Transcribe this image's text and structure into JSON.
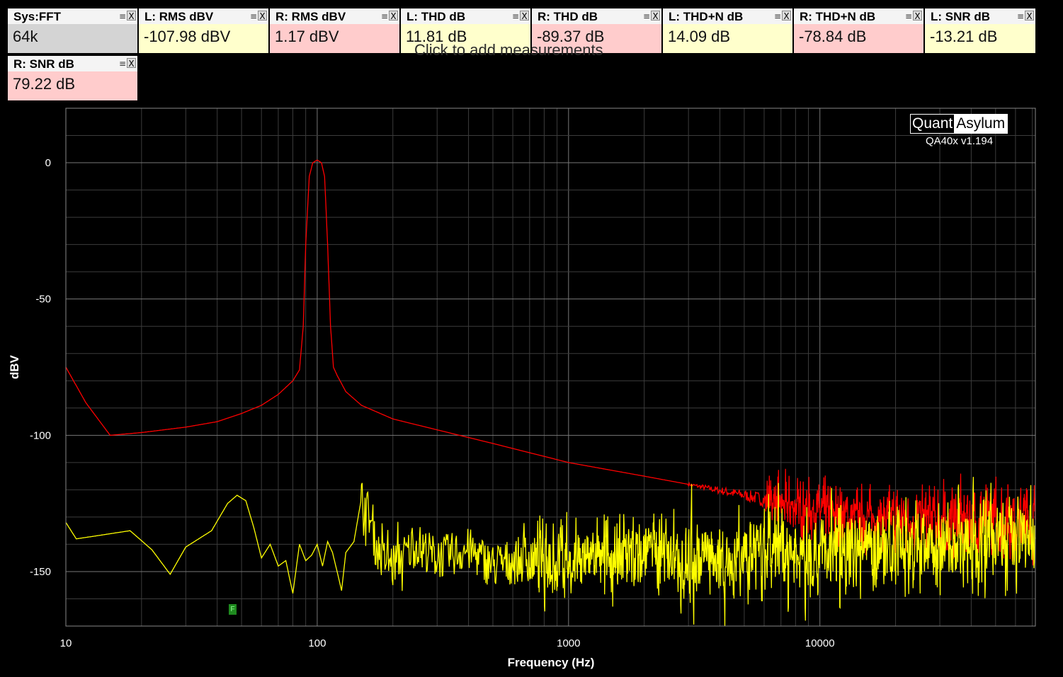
{
  "hint": "Click to add measurements",
  "tiles": [
    {
      "title": "Sys:FFT",
      "value": "64k",
      "bg": "#d4d4d4"
    },
    {
      "title": "L: RMS dBV",
      "value": "-107.98 dBV",
      "bg": "#ffffcc"
    },
    {
      "title": "R: RMS dBV",
      "value": "1.17 dBV",
      "bg": "#ffcccc"
    },
    {
      "title": "L: THD dB",
      "value": "11.81 dB",
      "bg": "#ffffcc"
    },
    {
      "title": "R: THD dB",
      "value": "-89.37 dB",
      "bg": "#ffcccc"
    },
    {
      "title": "L: THD+N dB",
      "value": "14.09 dB",
      "bg": "#ffffcc"
    },
    {
      "title": "R: THD+N dB",
      "value": "-78.84 dB",
      "bg": "#ffcccc"
    },
    {
      "title": "L: SNR dB",
      "value": "-13.21 dB",
      "bg": "#ffffcc"
    },
    {
      "title": "R: SNR dB",
      "value": "79.22 dB",
      "bg": "#ffcccc"
    }
  ],
  "tile_controls": {
    "menu": "≡",
    "close": "X"
  },
  "logo": {
    "left": "Quant",
    "right": "Asylum",
    "version": "QA40x v1.194"
  },
  "marker": "F",
  "chart_data": {
    "type": "line",
    "xlabel": "Frequency (Hz)",
    "ylabel": "dBV",
    "xscale": "log",
    "xlim": [
      10,
      72000
    ],
    "ylim": [
      -170,
      20
    ],
    "x_ticks": [
      10,
      100,
      1000,
      10000
    ],
    "x_tick_labels": [
      "10",
      "100",
      "1000",
      "10000"
    ],
    "y_ticks": [
      0,
      -50,
      -100,
      -150
    ],
    "y_tick_labels": [
      "0",
      "-50",
      "-100",
      "-150"
    ],
    "grid": true,
    "series": [
      {
        "color": "#ff0000",
        "x": [
          10,
          12,
          15,
          20,
          30,
          40,
          50,
          60,
          70,
          80,
          85,
          88,
          90,
          93,
          96,
          100,
          104,
          107,
          110,
          113,
          116,
          120,
          130,
          150,
          200,
          300,
          500,
          1000,
          2000,
          3000,
          5000,
          7000,
          10000,
          15000,
          20000,
          30000,
          50000,
          72000
        ],
        "y": [
          -75,
          -88,
          -100,
          -99,
          -97,
          -95,
          -92,
          -89,
          -85,
          -80,
          -76,
          -60,
          -30,
          -5,
          0,
          1,
          0,
          -5,
          -30,
          -60,
          -75,
          -78,
          -84,
          -89,
          -94,
          -98,
          -103,
          -110,
          -115,
          -118,
          -122,
          -125,
          -128,
          -130,
          -131,
          -131,
          -131,
          -131
        ]
      },
      {
        "color": "#ffff00",
        "x": [
          10,
          11,
          13,
          18,
          22,
          26,
          30,
          38,
          44,
          48,
          52,
          56,
          60,
          65,
          70,
          75,
          80,
          85,
          90,
          95,
          100,
          105,
          110,
          115,
          120,
          125,
          130,
          140,
          150,
          160,
          170,
          180,
          200,
          250,
          300,
          400,
          500,
          700,
          1000,
          2000,
          3000,
          5000,
          10000,
          20000,
          30000,
          50000,
          72000
        ],
        "y": [
          -132,
          -138,
          -137,
          -135,
          -142,
          -151,
          -141,
          -135,
          -125,
          -122,
          -124,
          -134,
          -145,
          -140,
          -148,
          -146,
          -158,
          -140,
          -146,
          -144,
          -140,
          -148,
          -139,
          -143,
          -150,
          -157,
          -143,
          -139,
          -123,
          -128,
          -140,
          -145,
          -147,
          -140,
          -145,
          -142,
          -148,
          -145,
          -146,
          -143,
          -145,
          -144,
          -143,
          -140,
          -140,
          -138,
          -138
        ]
      }
    ],
    "peak_spur": {
      "x": 56000,
      "y": -118
    }
  }
}
